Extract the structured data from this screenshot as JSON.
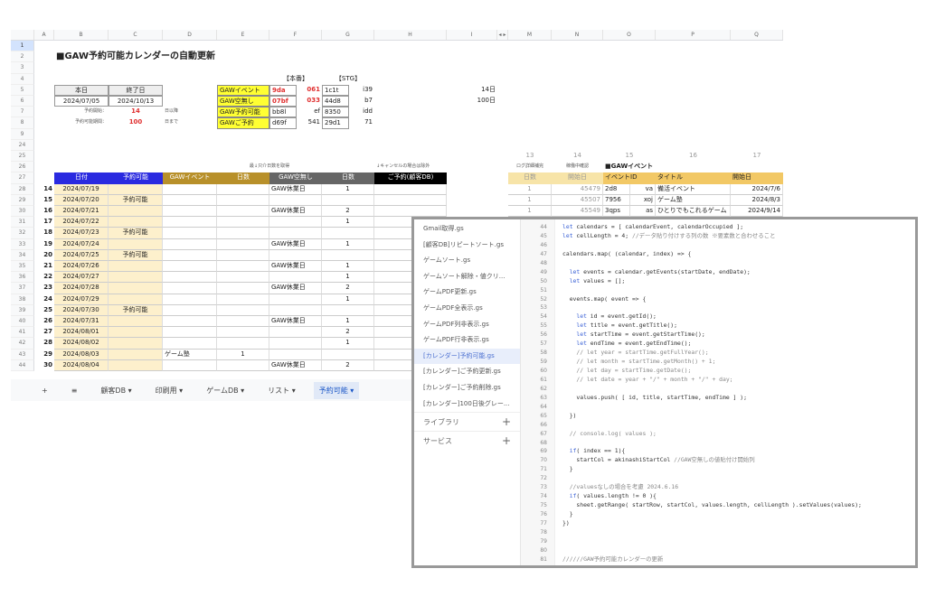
{
  "columns": [
    "A",
    "B",
    "C",
    "D",
    "E",
    "F",
    "G",
    "H",
    "I",
    "◂ ▸",
    "M",
    "N",
    "O",
    "P",
    "Q"
  ],
  "title": "■GAW予約可能カレンダーの自動更新",
  "env": {
    "prod": "【本番】",
    "stg": "【STG】"
  },
  "info": {
    "today_label": "本日",
    "end_label": "終了日",
    "today": "2024/07/05",
    "end": "2024/10/13",
    "start_label": "予約開始：",
    "start_val": "14",
    "start_unit": "日以降",
    "period_label": "予約可能期間：",
    "period_val": "100",
    "period_unit": "日まで",
    "right_vals": [
      "14日",
      "100日"
    ]
  },
  "calendars": [
    {
      "name": "GAWイベント",
      "p1": "9da",
      "p2": "061",
      "s1": "1c1t",
      "s2": "i39"
    },
    {
      "name": "GAW空無し",
      "p1": "07bf",
      "p2": "033",
      "s1": "44d8",
      "s2": "b7"
    },
    {
      "name": "GAW予約可能",
      "p1": "bb8l",
      "p2": "ef",
      "s1": "8350",
      "s2": "idd"
    },
    {
      "name": "GAWご予約",
      "p1": "d69f",
      "p2": "541",
      "s1": "29d1",
      "s2": "71"
    }
  ],
  "notes": {
    "e": "最↓只介日数を取得",
    "h": "↓キャンセルの場合は除外",
    "m": "ログ詳細補完",
    "n": "稼働中確認",
    "o": "■GAWイベント"
  },
  "right_nums": [
    "13",
    "14",
    "15",
    "16",
    "17"
  ],
  "headers": [
    "日付",
    "予約可能",
    "GAWイベント",
    "日数",
    "GAW空無し",
    "日数",
    "ご予約(顧客DB)"
  ],
  "header_colors": [
    "#2a2ae0",
    "#2a2ae0",
    "#b8902a",
    "#b8902a",
    "#666666",
    "#666666",
    "#000000"
  ],
  "right_headers": [
    "日数",
    "開始日",
    "イベントID",
    "タイトル",
    "開始日"
  ],
  "right_rows": [
    [
      "1",
      "45479",
      "2d8",
      "va",
      "備活イベント",
      "2024/7/6"
    ],
    [
      "1",
      "45507",
      "7956",
      "xoj",
      "ゲーム塾",
      "2024/8/3"
    ],
    [
      "1",
      "45549",
      "3qps",
      "as",
      "ひとりでもこれるゲーム",
      "2024/9/14"
    ]
  ],
  "row_numbers": [
    "1",
    "2",
    "3",
    "4",
    "5",
    "6",
    "7",
    "8",
    "9",
    "24",
    "25",
    "26",
    "27",
    "28",
    "29",
    "30",
    "31",
    "32",
    "33",
    "34",
    "35",
    "36",
    "37",
    "38",
    "39",
    "40",
    "41",
    "42",
    "43",
    "44"
  ],
  "rows": [
    [
      "14",
      "2024/07/19",
      "",
      "",
      "",
      "GAW休業日",
      "1"
    ],
    [
      "15",
      "2024/07/20",
      "予約可能",
      "",
      "",
      "",
      ""
    ],
    [
      "16",
      "2024/07/21",
      "",
      "",
      "",
      "GAW休業日",
      "2"
    ],
    [
      "17",
      "2024/07/22",
      "",
      "",
      "",
      "",
      "1"
    ],
    [
      "18",
      "2024/07/23",
      "予約可能",
      "",
      "",
      "",
      ""
    ],
    [
      "19",
      "2024/07/24",
      "",
      "",
      "",
      "GAW休業日",
      "1"
    ],
    [
      "20",
      "2024/07/25",
      "予約可能",
      "",
      "",
      "",
      ""
    ],
    [
      "21",
      "2024/07/26",
      "",
      "",
      "",
      "GAW休業日",
      "1"
    ],
    [
      "22",
      "2024/07/27",
      "",
      "",
      "",
      "",
      "1"
    ],
    [
      "23",
      "2024/07/28",
      "",
      "",
      "",
      "GAW休業日",
      "2"
    ],
    [
      "24",
      "2024/07/29",
      "",
      "",
      "",
      "",
      "1"
    ],
    [
      "25",
      "2024/07/30",
      "予約可能",
      "",
      "",
      "",
      ""
    ],
    [
      "26",
      "2024/07/31",
      "",
      "",
      "",
      "GAW休業日",
      "1"
    ],
    [
      "27",
      "2024/08/01",
      "",
      "",
      "",
      "",
      "2"
    ],
    [
      "28",
      "2024/08/02",
      "",
      "",
      "",
      "",
      "1"
    ],
    [
      "29",
      "2024/08/03",
      "",
      "ゲーム塾",
      "1",
      "",
      ""
    ],
    [
      "30",
      "2024/08/04",
      "",
      "",
      "",
      "GAW休業日",
      "2"
    ]
  ],
  "tabs": {
    "add": "+",
    "menu": "≡",
    "items": [
      "顧客DB ▾",
      "印刷用 ▾",
      "ゲームDB ▾",
      "リスト ▾",
      "予約可能 ▾"
    ],
    "active": 4
  },
  "editor": {
    "files": [
      "Gmail取得.gs",
      "[顧客DB]リピートソート.gs",
      "ゲームソート.gs",
      "ゲームソート解除・値クリ...",
      "ゲームPDF更新.gs",
      "ゲームPDF全表示.gs",
      "ゲームPDF列非表示.gs",
      "ゲームPDF行非表示.gs",
      "[カレンダー]予約可能.gs",
      "[カレンダー]ご予約更新.gs",
      "[カレンダー]ご予約削除.gs",
      "[カレンダー]100日後グレー..."
    ],
    "active_file": 8,
    "sections": [
      "ライブラリ",
      "サービス"
    ],
    "start_line": 44,
    "lines": [
      "let calendars = [ calendarEvent, calendarOccupied ];",
      "let cellLength = 4; //データ貼り付けする列の数 ※要素数と合わせること",
      "",
      "calendars.map( (calendar, index) => {",
      "",
      "  let events = calendar.getEvents(startDate, endDate);",
      "  let values = [];",
      "",
      "  events.map( event => {",
      "",
      "    let id = event.getId();",
      "    let title = event.getTitle();",
      "    let startTime = event.getStartTime();",
      "    let endTime = event.getEndTime();",
      "    // let year = startTime.getFullYear();",
      "    // let month = startTime.getMonth() + 1;",
      "    // let day = startTime.getDate();",
      "    // let date = year + \"/\" + month + \"/\" + day;",
      "",
      "    values.push( [ id, title, startTime, endTime ] );",
      "",
      "  })",
      "",
      "  // console.log( values );",
      "",
      "  if( index == 1){",
      "    startCol = akinashiStartCol //GAW空無しの値貼付け開始列",
      "  }",
      "",
      "  //valuesなしの場合を考慮 2024.6.16",
      "  if( values.length != 0 ){",
      "    sheet.getRange( startRow, startCol, values.length, cellLength ).setValues(values);",
      "  }",
      "})",
      "",
      "",
      "",
      "//////GAW予約可能カレンダーの更新"
    ]
  }
}
